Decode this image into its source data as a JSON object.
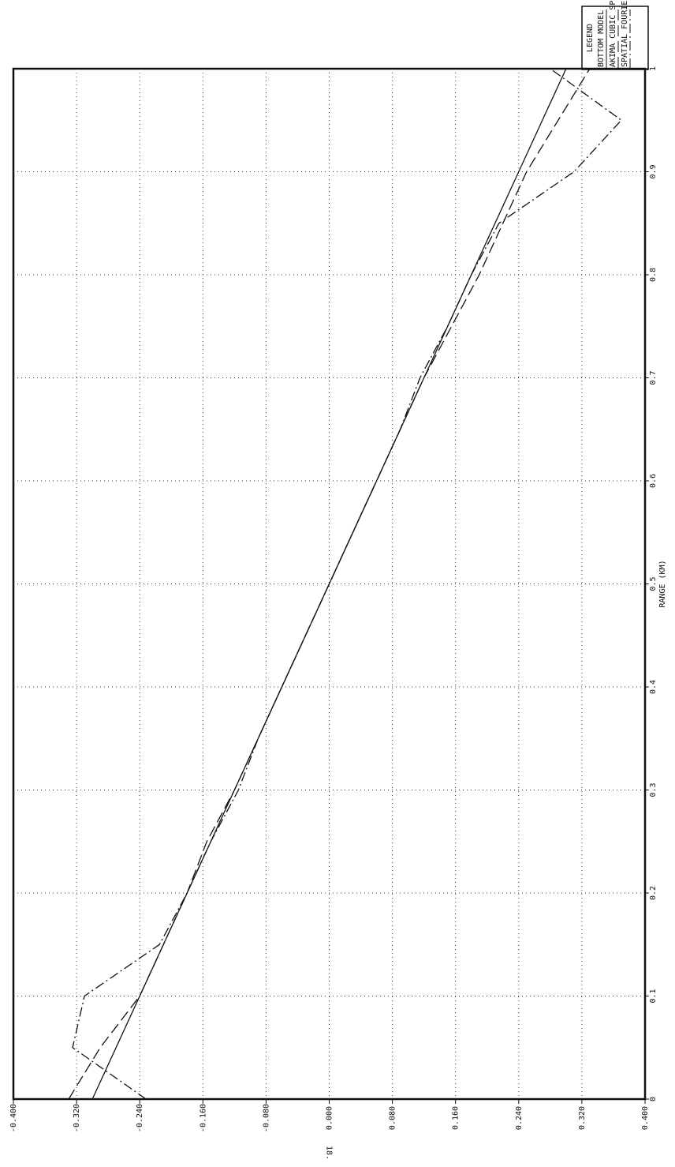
{
  "chart_data": {
    "type": "line",
    "x_label": "RANGE (KM)",
    "y_label": "18.",
    "legend_title": "LEGEND",
    "x": [
      0,
      0.05,
      0.1,
      0.15,
      0.2,
      0.25,
      0.3,
      0.35,
      0.4,
      0.45,
      0.5,
      0.55,
      0.6,
      0.65,
      0.7,
      0.75,
      0.8,
      0.85,
      0.9,
      0.95,
      1
    ],
    "series": [
      {
        "name": "BOTTOM MODEL",
        "color": "#111111",
        "style": "solid",
        "values": [
          -0.3,
          -0.27,
          -0.24,
          -0.21,
          -0.18,
          -0.15,
          -0.12,
          -0.09,
          -0.06,
          -0.03,
          0,
          0.03,
          0.06,
          0.09,
          0.12,
          0.15,
          0.18,
          0.21,
          0.24,
          0.27,
          0.3
        ]
      },
      {
        "name": "AKIMA CUBIC SPLINE",
        "color": "#111111",
        "style": "dashed",
        "values": [
          -0.33,
          -0.29,
          -0.24,
          -0.21,
          -0.18,
          -0.155,
          -0.12,
          -0.09,
          -0.06,
          -0.03,
          0,
          0.03,
          0.06,
          0.09,
          0.12,
          0.155,
          0.19,
          0.22,
          0.25,
          0.29,
          0.33
        ]
      },
      {
        "name": "SPATIAL FOURIER SERIES",
        "color": "#111111",
        "style": "dashdot",
        "values": [
          -0.232,
          -0.325,
          -0.31,
          -0.215,
          -0.18,
          -0.15,
          -0.115,
          -0.09,
          -0.06,
          -0.03,
          0,
          0.03,
          0.06,
          0.09,
          0.115,
          0.15,
          0.18,
          0.215,
          0.31,
          0.37,
          0.28
        ]
      }
    ],
    "xlim": [
      0,
      1
    ],
    "xticks": [
      0,
      0.1,
      0.2,
      0.3,
      0.4,
      0.5,
      0.6,
      0.7,
      0.8,
      0.9,
      1
    ],
    "ylim": [
      -0.4,
      0.4
    ],
    "yticks": [
      {
        "value": -0.4,
        "label": "-0.400"
      },
      {
        "value": -0.32,
        "label": "-0.320"
      },
      {
        "value": -0.24,
        "label": "-0.240"
      },
      {
        "value": -0.16,
        "label": "-0.160"
      },
      {
        "value": -0.08,
        "label": "-0.080"
      },
      {
        "value": 0,
        "label": "0.000"
      },
      {
        "value": 0.08,
        "label": "0.080"
      },
      {
        "value": 0.16,
        "label": "0.160"
      },
      {
        "value": 0.24,
        "label": "0.240"
      },
      {
        "value": 0.32,
        "label": "0.320"
      },
      {
        "value": 0.4,
        "label": "0.400"
      }
    ],
    "grid": true
  }
}
